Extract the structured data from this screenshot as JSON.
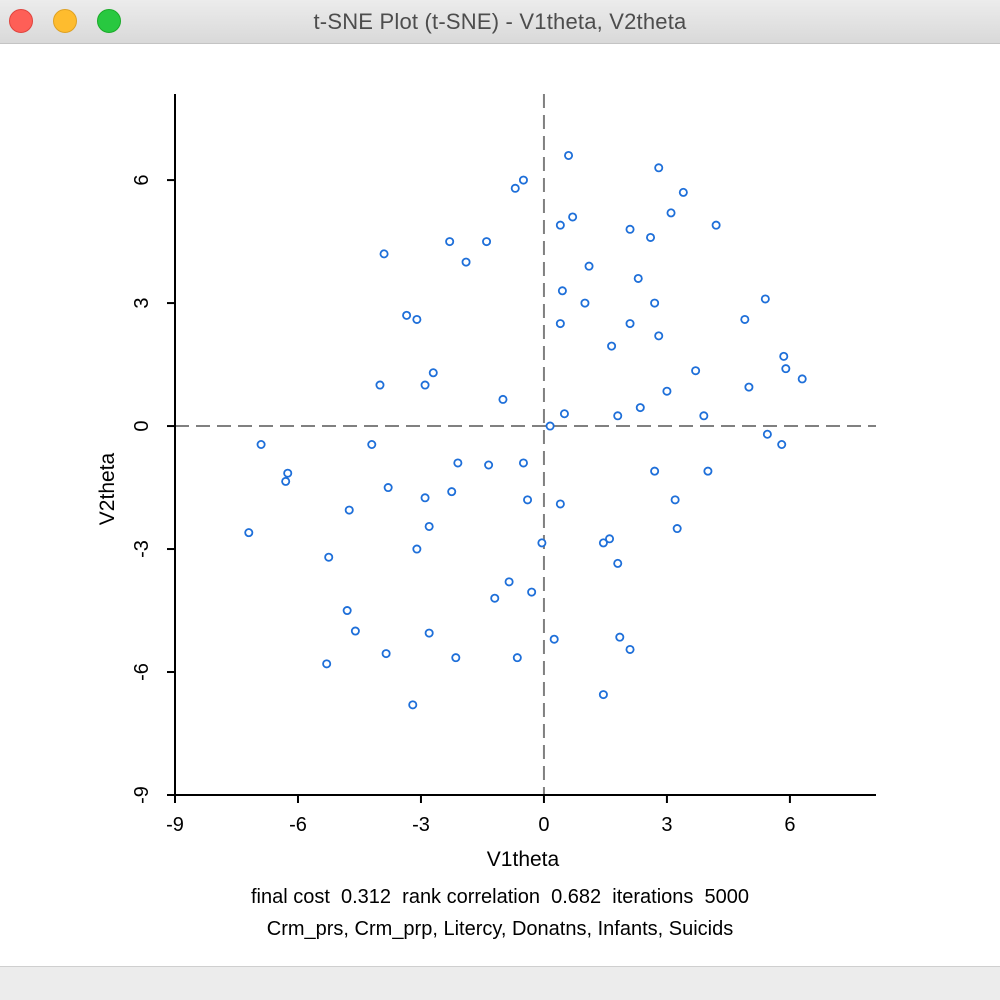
{
  "window": {
    "title": "t-SNE Plot (t-SNE) - V1theta, V2theta"
  },
  "colors": {
    "point": "#1e6fd9",
    "axis": "#000000",
    "reference_line": "#808080"
  },
  "chart_data": {
    "type": "scatter",
    "xlabel": "V1theta",
    "ylabel": "V2theta",
    "xlim": [
      -9,
      8.1
    ],
    "ylim": [
      -9,
      8.1
    ],
    "x_ticks": [
      "-9",
      "-6",
      "-3",
      "0",
      "3",
      "6"
    ],
    "y_ticks": [
      "-9",
      "-6",
      "-3",
      "0",
      "3",
      "6"
    ],
    "reference_lines": {
      "x": 0,
      "y": 0
    },
    "grid": false,
    "points": [
      [
        0.6,
        6.6
      ],
      [
        2.8,
        6.3
      ],
      [
        -0.5,
        6.0
      ],
      [
        -0.7,
        5.8
      ],
      [
        3.4,
        5.7
      ],
      [
        3.1,
        5.2
      ],
      [
        0.7,
        5.1
      ],
      [
        0.4,
        4.9
      ],
      [
        4.2,
        4.9
      ],
      [
        2.1,
        4.8
      ],
      [
        2.6,
        4.6
      ],
      [
        -1.4,
        4.5
      ],
      [
        -2.3,
        4.5
      ],
      [
        -3.9,
        4.2
      ],
      [
        -1.9,
        4.0
      ],
      [
        1.1,
        3.9
      ],
      [
        2.3,
        3.6
      ],
      [
        0.45,
        3.3
      ],
      [
        5.4,
        3.1
      ],
      [
        1.0,
        3.0
      ],
      [
        2.7,
        3.0
      ],
      [
        -3.35,
        2.7
      ],
      [
        -3.1,
        2.6
      ],
      [
        4.9,
        2.6
      ],
      [
        0.4,
        2.5
      ],
      [
        2.1,
        2.5
      ],
      [
        2.8,
        2.2
      ],
      [
        1.65,
        1.95
      ],
      [
        5.85,
        1.7
      ],
      [
        5.9,
        1.4
      ],
      [
        3.7,
        1.35
      ],
      [
        -2.7,
        1.3
      ],
      [
        6.3,
        1.15
      ],
      [
        -4.0,
        1.0
      ],
      [
        -2.9,
        1.0
      ],
      [
        5.0,
        0.95
      ],
      [
        3.0,
        0.85
      ],
      [
        -1.0,
        0.65
      ],
      [
        2.35,
        0.45
      ],
      [
        0.5,
        0.3
      ],
      [
        1.8,
        0.25
      ],
      [
        3.9,
        0.25
      ],
      [
        0.15,
        0.0
      ],
      [
        5.45,
        -0.2
      ],
      [
        -6.9,
        -0.45
      ],
      [
        -4.2,
        -0.45
      ],
      [
        5.8,
        -0.45
      ],
      [
        -0.5,
        -0.9
      ],
      [
        -2.1,
        -0.9
      ],
      [
        -1.35,
        -0.95
      ],
      [
        -6.25,
        -1.15
      ],
      [
        2.7,
        -1.1
      ],
      [
        4.0,
        -1.1
      ],
      [
        -6.3,
        -1.35
      ],
      [
        -3.8,
        -1.5
      ],
      [
        -2.25,
        -1.6
      ],
      [
        -2.9,
        -1.75
      ],
      [
        -0.4,
        -1.8
      ],
      [
        3.2,
        -1.8
      ],
      [
        0.4,
        -1.9
      ],
      [
        -4.75,
        -2.05
      ],
      [
        -2.8,
        -2.45
      ],
      [
        3.25,
        -2.5
      ],
      [
        -7.2,
        -2.6
      ],
      [
        1.6,
        -2.75
      ],
      [
        -0.05,
        -2.85
      ],
      [
        1.45,
        -2.85
      ],
      [
        -3.1,
        -3.0
      ],
      [
        -5.25,
        -3.2
      ],
      [
        1.8,
        -3.35
      ],
      [
        -0.85,
        -3.8
      ],
      [
        -0.3,
        -4.05
      ],
      [
        -1.2,
        -4.2
      ],
      [
        -4.8,
        -4.5
      ],
      [
        -4.6,
        -5.0
      ],
      [
        -2.8,
        -5.05
      ],
      [
        0.25,
        -5.2
      ],
      [
        1.85,
        -5.15
      ],
      [
        2.1,
        -5.45
      ],
      [
        -3.85,
        -5.55
      ],
      [
        -2.15,
        -5.65
      ],
      [
        -0.65,
        -5.65
      ],
      [
        -5.3,
        -5.8
      ],
      [
        1.45,
        -6.55
      ],
      [
        -3.2,
        -6.8
      ]
    ]
  },
  "info": {
    "stats_line": "final cost  0.312  rank correlation  0.682  iterations  5000",
    "variables_line": "Crm_prs, Crm_prp, Litercy, Donatns, Infants, Suicids"
  }
}
